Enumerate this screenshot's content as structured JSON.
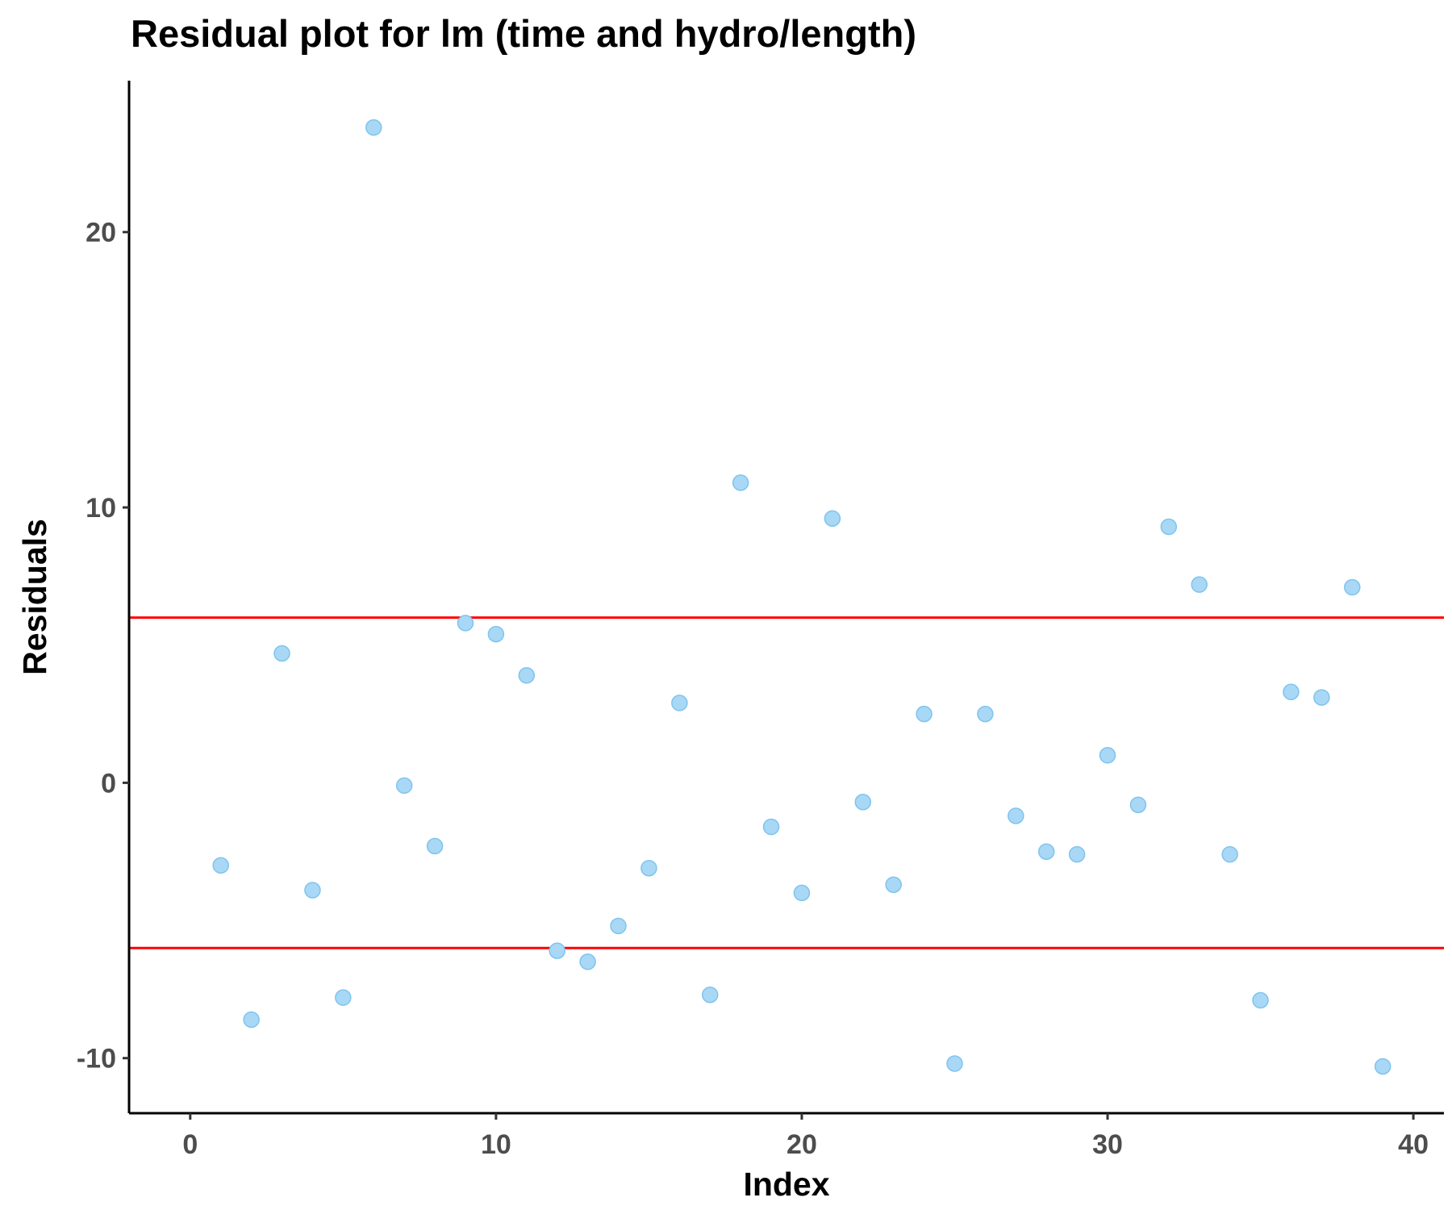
{
  "chart_data": {
    "type": "scatter",
    "title": "Residual plot for lm (time and hydro/length)",
    "xlabel": "Index",
    "ylabel": "Residuals",
    "xlim": [
      -2,
      41
    ],
    "ylim": [
      -12,
      25.5
    ],
    "x_ticks": [
      0,
      10,
      20,
      30,
      40
    ],
    "y_ticks": [
      -10,
      0,
      10,
      20
    ],
    "grid": false,
    "legend": "none",
    "point_fill": "#a8d8f5",
    "point_stroke": "#7fc4ee",
    "reference_line_color": "#ff0000",
    "reference_lines": [
      6,
      -6
    ],
    "points": [
      {
        "x": 1,
        "y": -3.0
      },
      {
        "x": 2,
        "y": -8.6
      },
      {
        "x": 3,
        "y": 4.7
      },
      {
        "x": 4,
        "y": -3.9
      },
      {
        "x": 5,
        "y": -7.8
      },
      {
        "x": 6,
        "y": 23.8
      },
      {
        "x": 7,
        "y": -0.1
      },
      {
        "x": 8,
        "y": -2.3
      },
      {
        "x": 9,
        "y": 5.8
      },
      {
        "x": 10,
        "y": 5.4
      },
      {
        "x": 11,
        "y": 3.9
      },
      {
        "x": 12,
        "y": -6.1
      },
      {
        "x": 13,
        "y": -6.5
      },
      {
        "x": 14,
        "y": -5.2
      },
      {
        "x": 15,
        "y": -3.1
      },
      {
        "x": 16,
        "y": 2.9
      },
      {
        "x": 17,
        "y": -7.7
      },
      {
        "x": 18,
        "y": 10.9
      },
      {
        "x": 19,
        "y": -1.6
      },
      {
        "x": 20,
        "y": -4.0
      },
      {
        "x": 21,
        "y": 9.6
      },
      {
        "x": 22,
        "y": -0.7
      },
      {
        "x": 23,
        "y": -3.7
      },
      {
        "x": 24,
        "y": 2.5
      },
      {
        "x": 25,
        "y": -10.2
      },
      {
        "x": 26,
        "y": 2.5
      },
      {
        "x": 27,
        "y": -1.2
      },
      {
        "x": 28,
        "y": -2.5
      },
      {
        "x": 29,
        "y": -2.6
      },
      {
        "x": 30,
        "y": 1.0
      },
      {
        "x": 31,
        "y": -0.8
      },
      {
        "x": 32,
        "y": 9.3
      },
      {
        "x": 33,
        "y": 7.2
      },
      {
        "x": 34,
        "y": -2.6
      },
      {
        "x": 35,
        "y": -7.9
      },
      {
        "x": 36,
        "y": 3.3
      },
      {
        "x": 37,
        "y": 3.1
      },
      {
        "x": 38,
        "y": 7.1
      },
      {
        "x": 39,
        "y": -10.3
      }
    ]
  }
}
